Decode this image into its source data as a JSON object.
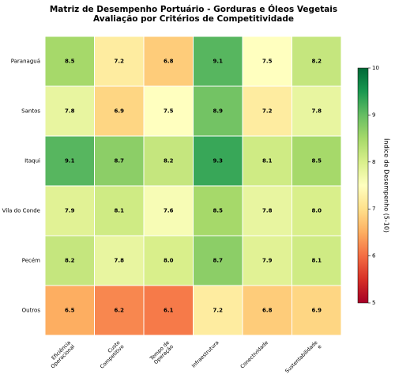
{
  "chart_data": {
    "type": "heatmap",
    "title": "Matriz de Desempenho Portuário - Gorduras e Óleos Vegetais",
    "subtitle": "Avaliação por Critérios de Competitividade",
    "categories": [
      "Eficiência\nOperacional",
      "Custo\nCompetitivo",
      "Tempo de\nOperação",
      "Infraestrutura",
      "Conectividade",
      "Sustentabilidade\ne"
    ],
    "rows": [
      "Paranaguá",
      "Santos",
      "Itaqui",
      "Vila do Conde",
      "Pecém",
      "Outros"
    ],
    "values": [
      [
        8.5,
        7.2,
        6.8,
        9.1,
        7.5,
        8.2
      ],
      [
        7.8,
        6.9,
        7.5,
        8.9,
        7.2,
        7.8
      ],
      [
        9.1,
        8.7,
        8.2,
        9.3,
        8.1,
        8.5
      ],
      [
        7.9,
        8.1,
        7.6,
        8.5,
        7.8,
        8.0
      ],
      [
        8.2,
        7.8,
        8.0,
        8.7,
        7.9,
        8.1
      ],
      [
        6.5,
        6.2,
        6.1,
        7.2,
        6.8,
        6.9
      ]
    ],
    "value_labels": [
      [
        "8.5",
        "7.2",
        "6.8",
        "9.1",
        "7.5",
        "8.2"
      ],
      [
        "7.8",
        "6.9",
        "7.5",
        "8.9",
        "7.2",
        "7.8"
      ],
      [
        "9.1",
        "8.7",
        "8.2",
        "9.3",
        "8.1",
        "8.5"
      ],
      [
        "7.9",
        "8.1",
        "7.6",
        "8.5",
        "7.8",
        "8.0"
      ],
      [
        "8.2",
        "7.8",
        "8.0",
        "8.7",
        "7.9",
        "8.1"
      ],
      [
        "6.5",
        "6.2",
        "6.1",
        "7.2",
        "6.8",
        "6.9"
      ]
    ],
    "colormap": "RdYlGn",
    "colorbar_label": "Índice de Desempenho (5-10)",
    "clim": [
      5,
      10
    ],
    "cticks": [
      5,
      6,
      7,
      8,
      9,
      10
    ]
  }
}
